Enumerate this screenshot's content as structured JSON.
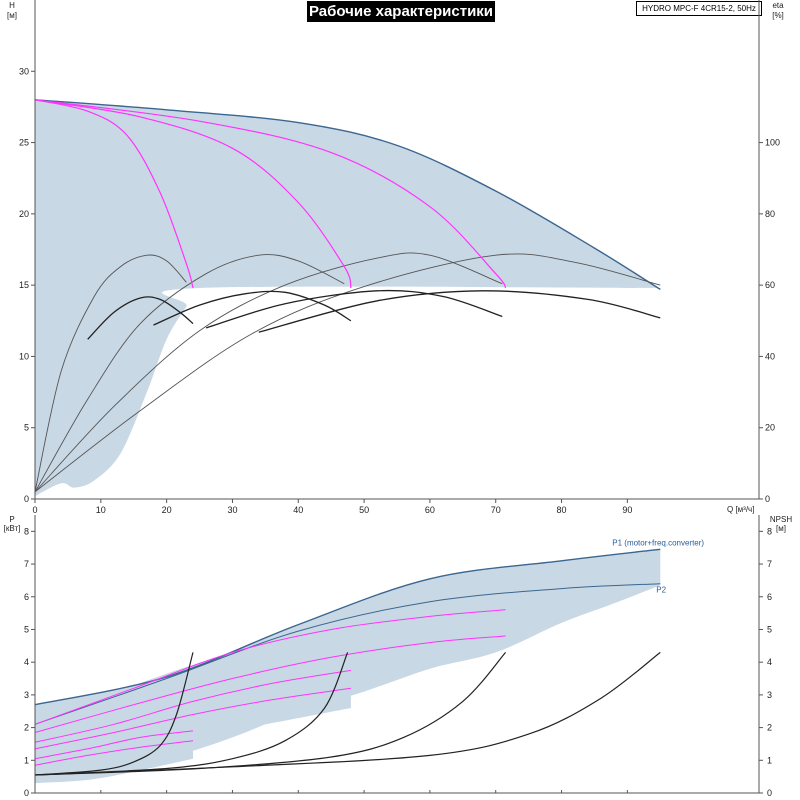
{
  "title": "Рабочие характеристики",
  "pump_label": "HYDRO MPC-F 4CR15-2, 50Hz",
  "colors": {
    "envelope_fill": "#c9d8e5",
    "envelope_edge": "#3a6690",
    "pump_curve": "#ff33ff",
    "eff_gray": "#555555",
    "eff_dark": "#222222"
  },
  "chart_data": [
    {
      "type": "line",
      "name": "upper",
      "x_axis": {
        "label": "Q",
        "unit": "[м³/ч]",
        "ticks": [
          0,
          10,
          20,
          30,
          40,
          50,
          60,
          70,
          80,
          90
        ],
        "range": [
          0,
          110
        ]
      },
      "y_left": {
        "label": "H",
        "unit": "[м]",
        "ticks": [
          0,
          5,
          10,
          15,
          20,
          25,
          30
        ],
        "range": [
          0,
          35
        ]
      },
      "y_right": {
        "label": "eta",
        "unit": "[%]",
        "ticks": [
          0,
          20,
          40,
          60,
          80,
          100
        ],
        "range": [
          0,
          140
        ]
      },
      "grid": false,
      "envelope": {
        "top": [
          [
            0,
            28
          ],
          [
            20,
            27.3
          ],
          [
            40,
            26.4
          ],
          [
            55,
            24.8
          ],
          [
            70,
            21.6
          ],
          [
            85,
            17.6
          ],
          [
            95,
            14.7
          ]
        ],
        "bottom": [
          [
            95,
            14.8
          ],
          [
            25,
            14.8
          ],
          [
            23,
            13.5
          ],
          [
            20,
            11.2
          ],
          [
            17,
            7.5
          ],
          [
            13,
            3.2
          ],
          [
            9,
            1.3
          ],
          [
            6,
            0.8
          ],
          [
            4,
            1.1
          ],
          [
            0,
            0.2
          ]
        ]
      },
      "pump_curves": [
        [
          [
            0,
            28
          ],
          [
            8,
            27.2
          ],
          [
            14,
            25.5
          ],
          [
            19,
            21.5
          ],
          [
            23,
            16.5
          ],
          [
            24,
            14.8
          ]
        ],
        [
          [
            0,
            28
          ],
          [
            16,
            26.8
          ],
          [
            30,
            24.6
          ],
          [
            40,
            20.8
          ],
          [
            47,
            16.3
          ],
          [
            48,
            14.8
          ]
        ],
        [
          [
            0,
            28
          ],
          [
            25,
            26.5
          ],
          [
            45,
            24.3
          ],
          [
            60,
            20.5
          ],
          [
            70,
            15.8
          ],
          [
            71.5,
            14.8
          ]
        ]
      ],
      "efficiency_curves_gray": [
        [
          [
            0,
            0.5
          ],
          [
            4,
            9
          ],
          [
            9,
            14.2
          ],
          [
            13,
            16.3
          ],
          [
            17,
            17.1
          ],
          [
            20,
            16.7
          ],
          [
            23,
            15.2
          ]
        ],
        [
          [
            0,
            0.5
          ],
          [
            8,
            7
          ],
          [
            16,
            12.3
          ],
          [
            26,
            15.8
          ],
          [
            34,
            17.1
          ],
          [
            40,
            16.7
          ],
          [
            47,
            15.1
          ]
        ],
        [
          [
            0,
            0.5
          ],
          [
            12,
            6.5
          ],
          [
            25,
            11.8
          ],
          [
            38,
            15
          ],
          [
            52,
            16.9
          ],
          [
            60,
            17.1
          ],
          [
            71,
            15.1
          ]
        ],
        [
          [
            0,
            0.5
          ],
          [
            16,
            6.2
          ],
          [
            33,
            11.6
          ],
          [
            50,
            14.9
          ],
          [
            70,
            17.1
          ],
          [
            82,
            16.6
          ],
          [
            95,
            15
          ]
        ]
      ],
      "efficiency_curves_dark": [
        [
          [
            8,
            11.2
          ],
          [
            12,
            13.1
          ],
          [
            16,
            14.1
          ],
          [
            19,
            14
          ],
          [
            22,
            13.1
          ],
          [
            24,
            12.3
          ]
        ],
        [
          [
            18,
            12.2
          ],
          [
            25,
            13.6
          ],
          [
            32,
            14.4
          ],
          [
            38,
            14.5
          ],
          [
            44,
            13.6
          ],
          [
            48,
            12.5
          ]
        ],
        [
          [
            26,
            12
          ],
          [
            38,
            13.7
          ],
          [
            52,
            14.6
          ],
          [
            62,
            14.2
          ],
          [
            71,
            12.8
          ]
        ],
        [
          [
            34,
            11.7
          ],
          [
            52,
            13.9
          ],
          [
            68,
            14.6
          ],
          [
            84,
            14
          ],
          [
            95,
            12.7
          ]
        ]
      ]
    },
    {
      "type": "line",
      "name": "lower",
      "x_axis": {
        "ticks": [
          0,
          10,
          20,
          30,
          40,
          50,
          60,
          70,
          80,
          90
        ],
        "range": [
          0,
          110
        ]
      },
      "y_left": {
        "label": "P",
        "unit": "[кВт]",
        "ticks": [
          0,
          1,
          2,
          3,
          4,
          5,
          6,
          7,
          8
        ],
        "range": [
          0,
          8.5
        ]
      },
      "y_right": {
        "label": "NPSH",
        "unit": "[м]",
        "ticks": [
          0,
          1,
          2,
          3,
          4,
          5,
          6,
          7,
          8
        ],
        "range": [
          0,
          8.5
        ]
      },
      "grid": false,
      "series": [
        {
          "name": "P1 (motor+freq.converter)",
          "points": [
            [
              0,
              2.7
            ],
            [
              20,
              3.55
            ],
            [
              40,
              5.15
            ],
            [
              60,
              6.55
            ],
            [
              80,
              7.1
            ],
            [
              95,
              7.45
            ]
          ]
        },
        {
          "name": "P2",
          "points": [
            [
              0,
              2.1
            ],
            [
              20,
              3.5
            ],
            [
              40,
              4.95
            ],
            [
              60,
              5.85
            ],
            [
              80,
              6.25
            ],
            [
              95,
              6.4
            ]
          ]
        }
      ],
      "envelope": {
        "top": [
          [
            0,
            2.7
          ],
          [
            20,
            3.55
          ],
          [
            40,
            5.15
          ],
          [
            60,
            6.55
          ],
          [
            80,
            7.1
          ],
          [
            95,
            7.45
          ]
        ],
        "bottom": [
          [
            95,
            6.35
          ],
          [
            88,
            5.8
          ],
          [
            80,
            5.2
          ],
          [
            70,
            4.3
          ],
          [
            60,
            3.8
          ],
          [
            50,
            3.1
          ],
          [
            40,
            2.5
          ],
          [
            30,
            1.7
          ],
          [
            20,
            1.05
          ],
          [
            10,
            0.6
          ],
          [
            5,
            0.45
          ],
          [
            0,
            0.5
          ]
        ]
      },
      "band_fills": [
        {
          "top": [
            [
              0,
              2.1
            ],
            [
              10,
              2.9
            ],
            [
              20,
              3.65
            ],
            [
              30,
              4.3
            ],
            [
              40,
              4.9
            ],
            [
              55,
              5.5
            ],
            [
              71,
              5.75
            ]
          ],
          "bottom": [
            [
              71,
              5.1
            ],
            [
              60,
              4.9
            ],
            [
              45,
              4.3
            ],
            [
              30,
              3.6
            ],
            [
              15,
              2.6
            ],
            [
              0,
              1.5
            ]
          ]
        },
        {
          "top": [
            [
              0,
              1.55
            ],
            [
              10,
              2.1
            ],
            [
              25,
              2.85
            ],
            [
              35,
              3.25
            ],
            [
              48,
              3.2
            ]
          ],
          "bottom": [
            [
              48,
              2.6
            ],
            [
              35,
              2.1
            ],
            [
              25,
              1.75
            ],
            [
              12,
              1.05
            ],
            [
              0,
              0.6
            ]
          ]
        },
        {
          "top": [
            [
              0,
              1.05
            ],
            [
              10,
              1.45
            ],
            [
              18,
              1.55
            ],
            [
              24,
              1.6
            ]
          ],
          "bottom": [
            [
              24,
              1.05
            ],
            [
              15,
              0.65
            ],
            [
              8,
              0.4
            ],
            [
              0,
              0.3
            ]
          ]
        }
      ],
      "pump_power_curves": [
        [
          [
            0,
            2.1
          ],
          [
            15,
            3.2
          ],
          [
            30,
            4.3
          ],
          [
            45,
            5.0
          ],
          [
            60,
            5.4
          ],
          [
            71.5,
            5.6
          ]
        ],
        [
          [
            0,
            1.85
          ],
          [
            15,
            2.7
          ],
          [
            30,
            3.5
          ],
          [
            45,
            4.15
          ],
          [
            60,
            4.6
          ],
          [
            71.5,
            4.8
          ]
        ],
        [
          [
            0,
            1.55
          ],
          [
            12,
            2.1
          ],
          [
            24,
            2.8
          ],
          [
            36,
            3.35
          ],
          [
            48,
            3.75
          ]
        ],
        [
          [
            0,
            1.35
          ],
          [
            12,
            1.85
          ],
          [
            24,
            2.4
          ],
          [
            36,
            2.85
          ],
          [
            48,
            3.2
          ]
        ],
        [
          [
            0,
            1.05
          ],
          [
            8,
            1.35
          ],
          [
            16,
            1.7
          ],
          [
            24,
            1.9
          ]
        ],
        [
          [
            0,
            0.85
          ],
          [
            8,
            1.15
          ],
          [
            16,
            1.4
          ],
          [
            24,
            1.6
          ]
        ]
      ],
      "npsh_curves": [
        [
          [
            0,
            0.55
          ],
          [
            10,
            0.7
          ],
          [
            15,
            0.95
          ],
          [
            19,
            1.45
          ],
          [
            21.5,
            2.4
          ],
          [
            24,
            4.3
          ]
        ],
        [
          [
            0,
            0.55
          ],
          [
            20,
            0.75
          ],
          [
            30,
            1.05
          ],
          [
            38,
            1.6
          ],
          [
            44,
            2.6
          ],
          [
            47.5,
            4.3
          ]
        ],
        [
          [
            0,
            0.55
          ],
          [
            25,
            0.75
          ],
          [
            45,
            1.1
          ],
          [
            56,
            1.7
          ],
          [
            65,
            2.8
          ],
          [
            71.5,
            4.3
          ]
        ],
        [
          [
            0,
            0.55
          ],
          [
            30,
            0.8
          ],
          [
            60,
            1.15
          ],
          [
            75,
            1.8
          ],
          [
            86,
            2.9
          ],
          [
            95,
            4.3
          ]
        ]
      ]
    }
  ]
}
